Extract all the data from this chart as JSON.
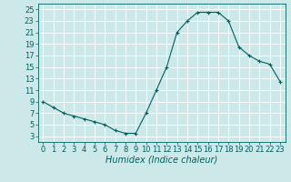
{
  "x": [
    0,
    1,
    2,
    3,
    4,
    5,
    6,
    7,
    8,
    9,
    10,
    11,
    12,
    13,
    14,
    15,
    16,
    17,
    18,
    19,
    20,
    21,
    22,
    23
  ],
  "y": [
    9,
    8,
    7,
    6.5,
    6,
    5.5,
    5,
    4,
    3.5,
    3.5,
    7,
    11,
    15,
    21,
    23,
    24.5,
    24.5,
    24.5,
    23,
    18.5,
    17,
    16,
    15.5,
    12.5
  ],
  "line_color": "#006060",
  "marker": "+",
  "marker_size": 3,
  "xlabel": "Humidex (Indice chaleur)",
  "xlabel_style": "italic",
  "xlim": [
    -0.5,
    23.5
  ],
  "ylim": [
    2,
    26
  ],
  "yticks": [
    3,
    5,
    7,
    9,
    11,
    13,
    15,
    17,
    19,
    21,
    23,
    25
  ],
  "xticks": [
    0,
    1,
    2,
    3,
    4,
    5,
    6,
    7,
    8,
    9,
    10,
    11,
    12,
    13,
    14,
    15,
    16,
    17,
    18,
    19,
    20,
    21,
    22,
    23
  ],
  "bg_color": "#cce8e8",
  "grid_color": "#ffffff",
  "tick_color": "#006060",
  "label_color": "#006060",
  "font_size": 6,
  "xlabel_fontsize": 7,
  "linewidth": 0.8,
  "markeredgewidth": 0.8
}
